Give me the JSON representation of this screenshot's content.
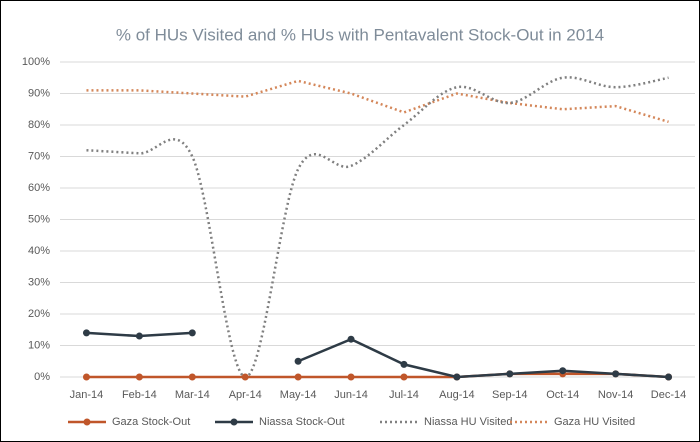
{
  "chart_data": {
    "type": "line",
    "title": "% of HUs Visited and % HUs with Pentavalent Stock-Out in 2014",
    "categories": [
      "Jan-14",
      "Feb-14",
      "Mar-14",
      "Apr-14",
      "May-14",
      "Jun-14",
      "Jul-14",
      "Aug-14",
      "Sep-14",
      "Oct-14",
      "Nov-14",
      "Dec-14"
    ],
    "series": [
      {
        "name": "Gaza Stock-Out",
        "color": "#c0562a",
        "style": "solid",
        "markers": true,
        "values": [
          0,
          0,
          0,
          0,
          0,
          0,
          0,
          0,
          1,
          1,
          1,
          0
        ]
      },
      {
        "name": "Niassa Stock-Out",
        "color": "#2e3b46",
        "style": "solid",
        "markers": true,
        "values": [
          14,
          13,
          14,
          null,
          5,
          12,
          4,
          0,
          1,
          2,
          1,
          0
        ]
      },
      {
        "name": "Niassa HU Visited",
        "color": "#808080",
        "style": "dotted",
        "markers": false,
        "smooth": true,
        "values": [
          72,
          71,
          70,
          0,
          66,
          67,
          80,
          92,
          87,
          95,
          92,
          95
        ]
      },
      {
        "name": "Gaza HU Visited",
        "color": "#d4875a",
        "style": "dotted",
        "markers": false,
        "smooth": false,
        "values": [
          91,
          91,
          90,
          89,
          94,
          90,
          84,
          90,
          87,
          85,
          86,
          81
        ]
      }
    ],
    "ylim": [
      0,
      100
    ],
    "yticks": [
      {
        "value": 0,
        "label": "0%"
      },
      {
        "value": 10,
        "label": "10%"
      },
      {
        "value": 20,
        "label": "20%"
      },
      {
        "value": 30,
        "label": "30%"
      },
      {
        "value": 40,
        "label": "40%"
      },
      {
        "value": 50,
        "label": "50%"
      },
      {
        "value": 60,
        "label": "60%"
      },
      {
        "value": 70,
        "label": "70%"
      },
      {
        "value": 80,
        "label": "80%"
      },
      {
        "value": 90,
        "label": "90%"
      },
      {
        "value": 100,
        "label": "100%"
      }
    ],
    "grid": true,
    "legend": "bottom"
  }
}
